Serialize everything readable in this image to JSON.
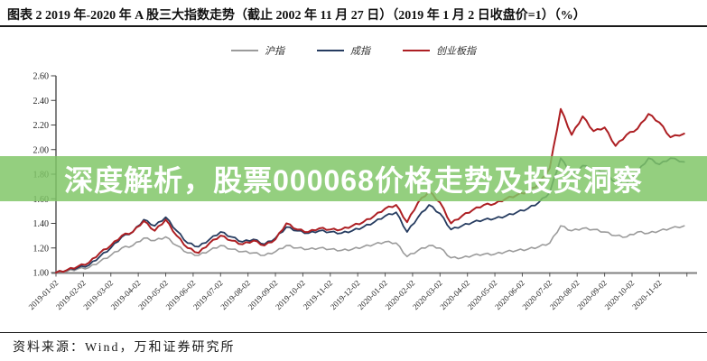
{
  "header": {
    "title": "图表 2  2019 年-2020 年 A 股三大指数走势（截止 2002 年 11 月 27 日）（2019 年 1 月 2 日收盘价=1）（%）"
  },
  "overlay": {
    "text": "深度解析，股票000068价格走势及投资洞察",
    "background": "rgba(128,198,102,0.84)",
    "text_color": "#ffffff"
  },
  "footer": {
    "source": "资料来源：Wind，万和证券研究所"
  },
  "chart_data": {
    "type": "line",
    "title": "2019-2020 A股三大指数走势 (2019-01-02收盘价=1)",
    "legend_position": "top",
    "grid": false,
    "ylim": [
      1.0,
      2.6
    ],
    "ytick_labels": [
      "2.60",
      "2.40",
      "2.20",
      "2.00",
      "1.80",
      "1.60",
      "1.40",
      "1.20",
      "1.00"
    ],
    "xtick_labels": [
      "2019-01-02",
      "2019-02-02",
      "2019-03-02",
      "2019-04-02",
      "2019-05-02",
      "2019-06-02",
      "2019-07-02",
      "2019-08-02",
      "2019-09-02",
      "2019-10-02",
      "2019-11-02",
      "2019-12-02",
      "2020-01-02",
      "2020-02-02",
      "2020-03-02",
      "2020-04-02",
      "2020-05-02",
      "2020-06-02",
      "2020-07-02",
      "2020-08-02",
      "2020-09-02",
      "2020-10-02",
      "2020-11-02"
    ],
    "x_unit": "months-since-2019-01-02",
    "x": [
      0,
      0.4,
      0.8,
      1.2,
      1.6,
      2.0,
      2.4,
      2.8,
      3.2,
      3.6,
      4.0,
      4.4,
      4.8,
      5.2,
      5.6,
      6.0,
      6.4,
      6.8,
      7.2,
      7.6,
      8.0,
      8.4,
      8.8,
      9.2,
      9.6,
      10.0,
      10.4,
      10.8,
      11.2,
      11.6,
      12.0,
      12.4,
      12.8,
      13.2,
      13.6,
      14.0,
      14.4,
      14.8,
      15.2,
      15.6,
      16.0,
      16.4,
      16.8,
      17.2,
      17.6,
      18.0,
      18.4,
      18.8,
      19.2,
      19.6,
      20.0,
      20.4,
      20.8,
      21.2,
      21.6,
      22.0,
      22.4,
      22.9
    ],
    "series": [
      {
        "name": "沪指",
        "color": "#9b9b9b",
        "values": [
          1.0,
          1.01,
          1.03,
          1.04,
          1.09,
          1.14,
          1.2,
          1.22,
          1.28,
          1.26,
          1.29,
          1.22,
          1.16,
          1.14,
          1.18,
          1.22,
          1.19,
          1.17,
          1.16,
          1.14,
          1.17,
          1.22,
          1.2,
          1.19,
          1.2,
          1.19,
          1.18,
          1.19,
          1.21,
          1.23,
          1.25,
          1.24,
          1.13,
          1.18,
          1.22,
          1.2,
          1.12,
          1.12,
          1.14,
          1.15,
          1.15,
          1.17,
          1.18,
          1.19,
          1.21,
          1.24,
          1.38,
          1.34,
          1.36,
          1.35,
          1.33,
          1.3,
          1.29,
          1.33,
          1.32,
          1.34,
          1.36,
          1.38
        ]
      },
      {
        "name": "成指",
        "color": "#263c60",
        "values": [
          1.0,
          1.02,
          1.04,
          1.06,
          1.13,
          1.2,
          1.29,
          1.33,
          1.43,
          1.38,
          1.45,
          1.34,
          1.24,
          1.21,
          1.27,
          1.33,
          1.29,
          1.25,
          1.27,
          1.23,
          1.28,
          1.37,
          1.34,
          1.32,
          1.34,
          1.33,
          1.32,
          1.34,
          1.37,
          1.41,
          1.46,
          1.49,
          1.33,
          1.45,
          1.55,
          1.48,
          1.35,
          1.38,
          1.41,
          1.43,
          1.44,
          1.46,
          1.49,
          1.52,
          1.57,
          1.65,
          1.93,
          1.8,
          1.87,
          1.84,
          1.82,
          1.73,
          1.72,
          1.82,
          1.93,
          1.88,
          1.93,
          1.9
        ]
      },
      {
        "name": "创业板指",
        "color": "#ad1f23",
        "values": [
          1.0,
          1.02,
          1.05,
          1.08,
          1.16,
          1.22,
          1.3,
          1.33,
          1.42,
          1.34,
          1.43,
          1.3,
          1.2,
          1.16,
          1.24,
          1.3,
          1.26,
          1.23,
          1.26,
          1.22,
          1.27,
          1.4,
          1.35,
          1.33,
          1.36,
          1.35,
          1.35,
          1.38,
          1.41,
          1.46,
          1.52,
          1.55,
          1.41,
          1.57,
          1.66,
          1.57,
          1.4,
          1.46,
          1.51,
          1.55,
          1.56,
          1.6,
          1.63,
          1.66,
          1.72,
          1.85,
          2.33,
          2.12,
          2.27,
          2.15,
          2.18,
          2.03,
          2.12,
          2.17,
          2.29,
          2.22,
          2.1,
          2.13
        ]
      }
    ]
  }
}
